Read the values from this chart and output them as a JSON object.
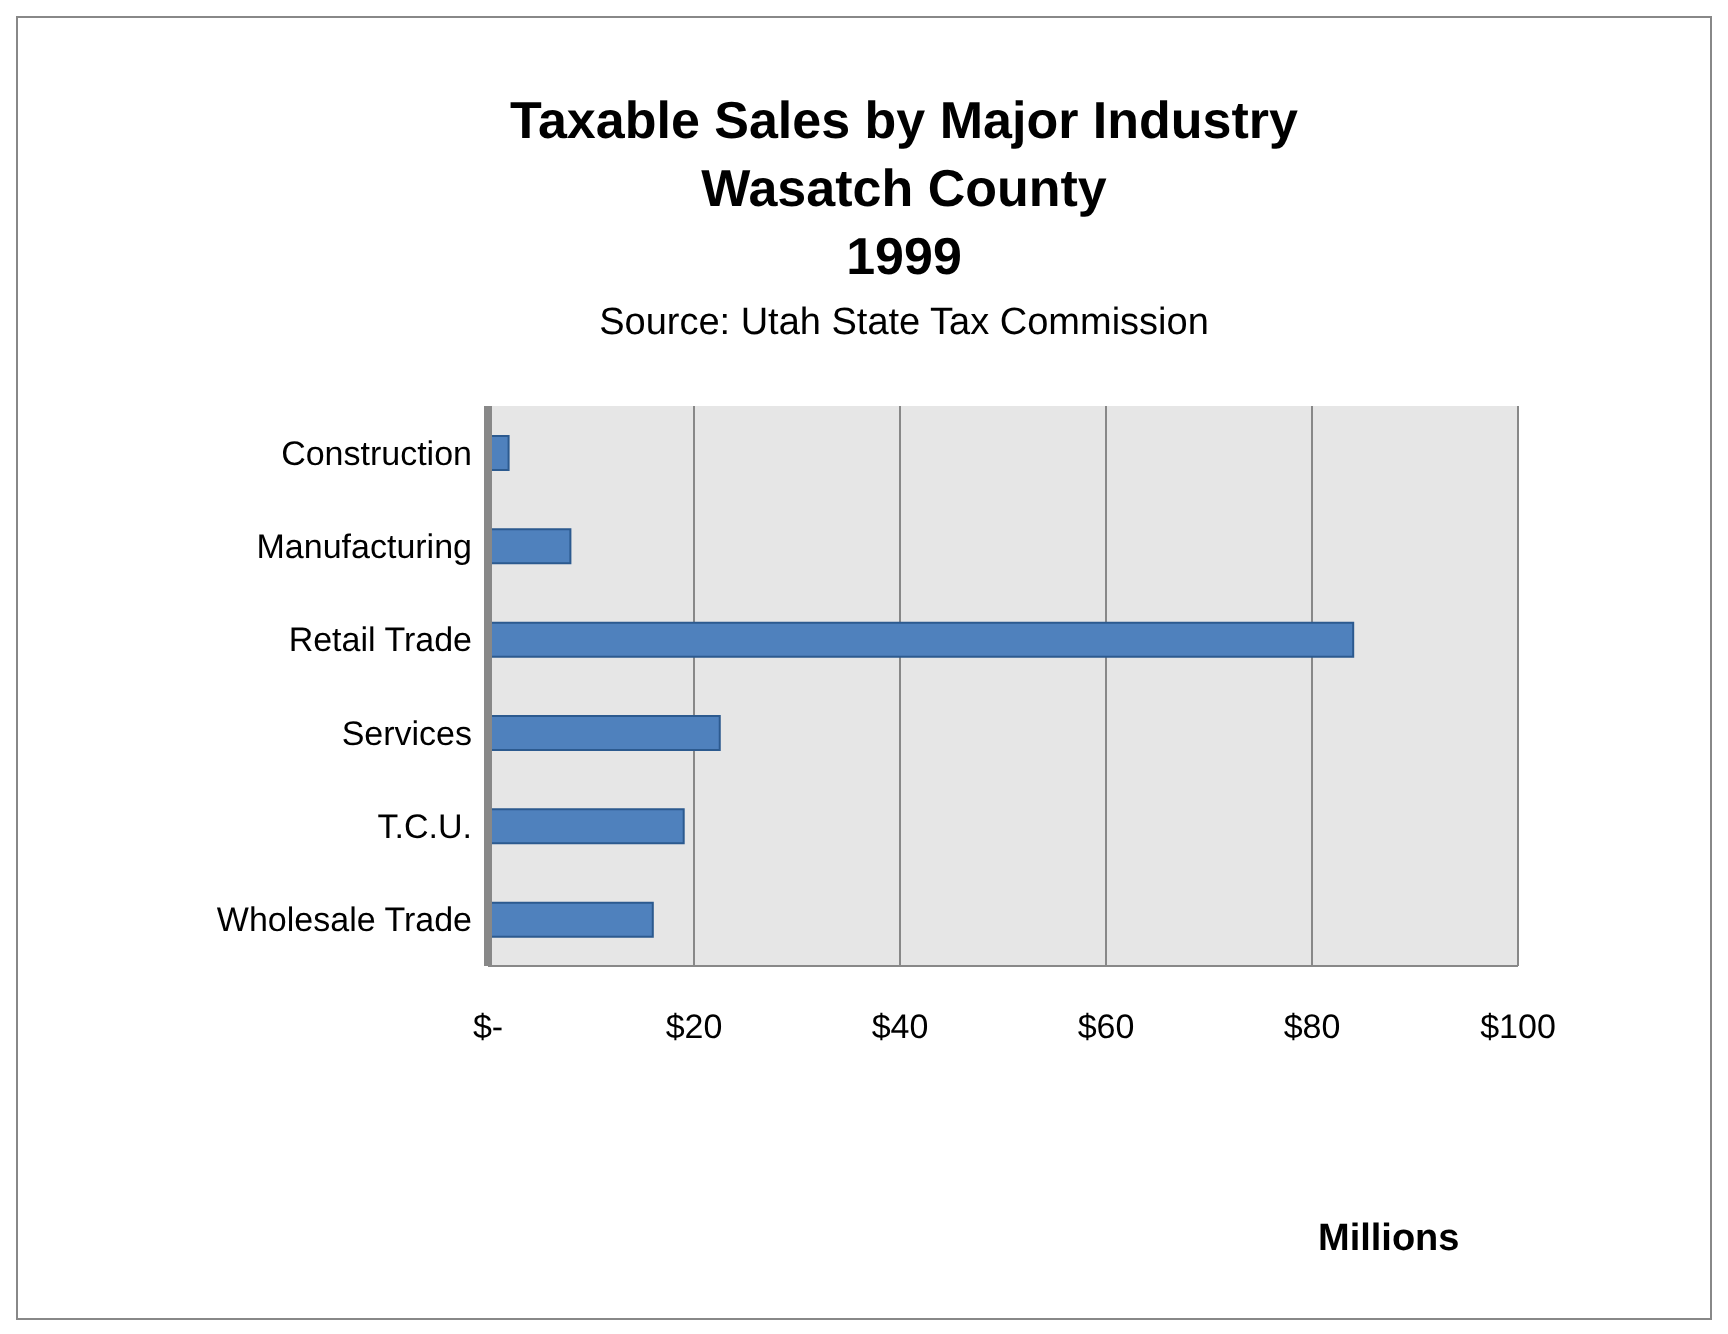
{
  "chart_data": {
    "type": "bar",
    "orientation": "horizontal",
    "title": "Taxable Sales by Major Industry\nWasatch County\n1999",
    "subtitle": "Source: Utah State Tax Commission",
    "xlabel": "Millions",
    "categories": [
      "Construction",
      "Manufacturing",
      "Retail Trade",
      "Services",
      "T.C.U.",
      "Wholesale Trade"
    ],
    "values": [
      2,
      8,
      84,
      22.5,
      19,
      16
    ],
    "color": "#4f81bd",
    "xlim": [
      0,
      100
    ],
    "xticks": [
      {
        "value": 0,
        "label": "$-"
      },
      {
        "value": 20,
        "label": "$20"
      },
      {
        "value": 40,
        "label": "$40"
      },
      {
        "value": 60,
        "label": "$60"
      },
      {
        "value": 80,
        "label": "$80"
      },
      {
        "value": 100,
        "label": "$100"
      }
    ],
    "grid": "x"
  }
}
